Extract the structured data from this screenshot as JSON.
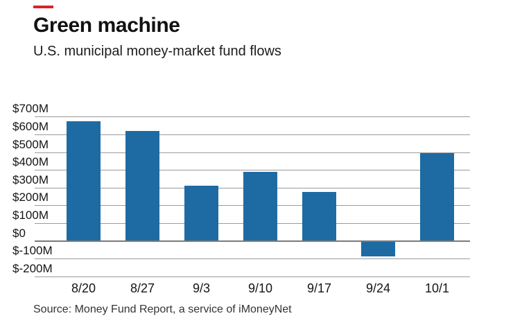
{
  "accent_color": "#d8232a",
  "header": {
    "title": "Green machine",
    "subtitle": "U.S. municipal money-market fund flows"
  },
  "source": "Source: Money Fund Report, a service of iMoneyNet",
  "chart_data": {
    "type": "bar",
    "categories": [
      "8/20",
      "8/27",
      "9/3",
      "9/10",
      "9/17",
      "9/24",
      "10/1"
    ],
    "values": [
      675,
      620,
      310,
      390,
      275,
      -85,
      495
    ],
    "units": "millions of dollars",
    "title": "Green machine",
    "subtitle": "U.S. municipal money-market fund flows",
    "xlabel": "",
    "ylabel": "",
    "ylim": [
      -200,
      700
    ],
    "ytick_step": 100,
    "ytick_values": [
      700,
      600,
      500,
      400,
      300,
      200,
      100,
      0,
      -100,
      -200
    ],
    "ytick_labels": [
      "$700M",
      "$600M",
      "$500M",
      "$400M",
      "$300M",
      "$200M",
      "$100M",
      "$0",
      "$-100M",
      "$-200M"
    ],
    "bar_color": "#1e6ba3",
    "grid": true,
    "legend": false
  }
}
